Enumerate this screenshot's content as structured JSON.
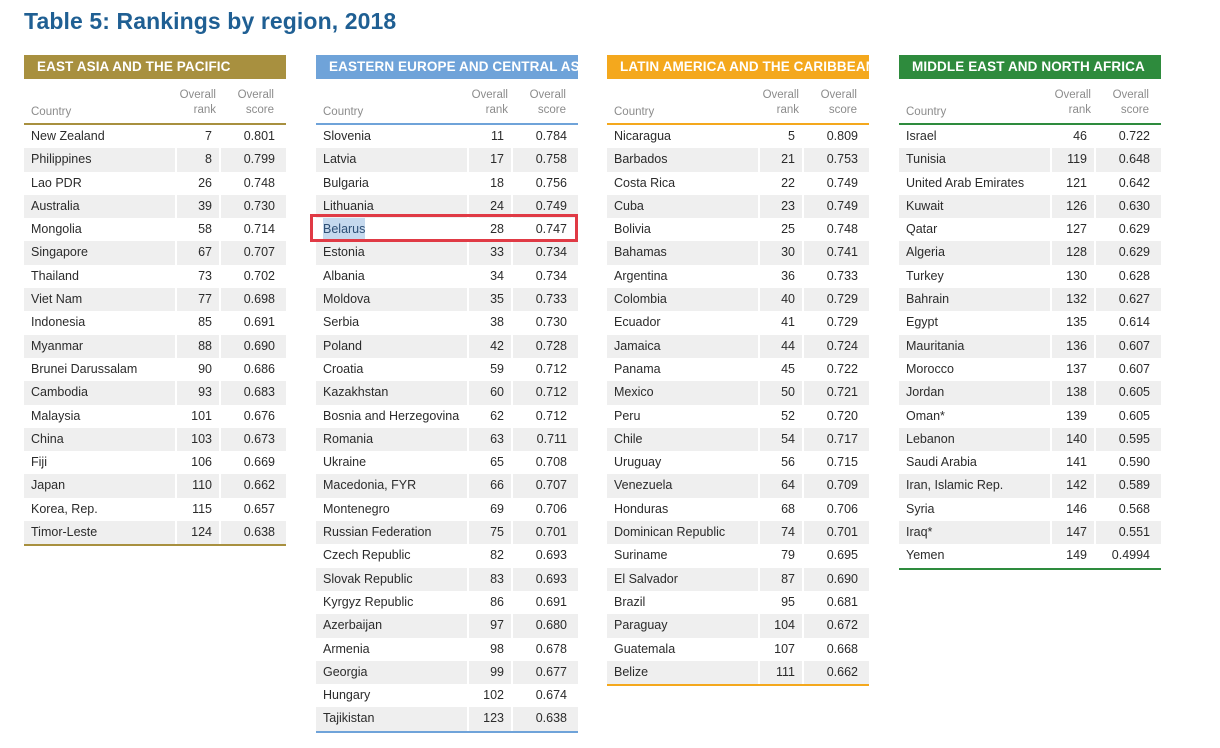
{
  "title": "Table 5: Rankings by region, 2018",
  "columns": {
    "country": "Country",
    "rank": "Overall\nrank",
    "score": "Overall\nscore"
  },
  "colors": {
    "title": "#1f5f93",
    "east_asia": "#a8903f",
    "eastern_europe": "#6fa3d9",
    "latin_america": "#f4a81d",
    "middle_east": "#2e8b3d",
    "highlight": "#e03a45"
  },
  "regions": [
    {
      "name": "EAST ASIA AND THE PACIFIC",
      "color": "#a8903f",
      "rows": [
        [
          "New Zealand",
          "7",
          "0.801"
        ],
        [
          "Philippines",
          "8",
          "0.799"
        ],
        [
          "Lao PDR",
          "26",
          "0.748"
        ],
        [
          "Australia",
          "39",
          "0.730"
        ],
        [
          "Mongolia",
          "58",
          "0.714"
        ],
        [
          "Singapore",
          "67",
          "0.707"
        ],
        [
          "Thailand",
          "73",
          "0.702"
        ],
        [
          "Viet Nam",
          "77",
          "0.698"
        ],
        [
          "Indonesia",
          "85",
          "0.691"
        ],
        [
          "Myanmar",
          "88",
          "0.690"
        ],
        [
          "Brunei Darussalam",
          "90",
          "0.686"
        ],
        [
          "Cambodia",
          "93",
          "0.683"
        ],
        [
          "Malaysia",
          "101",
          "0.676"
        ],
        [
          "China",
          "103",
          "0.673"
        ],
        [
          "Fiji",
          "106",
          "0.669"
        ],
        [
          "Japan",
          "110",
          "0.662"
        ],
        [
          "Korea, Rep.",
          "115",
          "0.657"
        ],
        [
          "Timor-Leste",
          "124",
          "0.638"
        ]
      ]
    },
    {
      "name": "EASTERN EUROPE AND CENTRAL ASIA",
      "color": "#6fa3d9",
      "rows": [
        [
          "Slovenia",
          "11",
          "0.784"
        ],
        [
          "Latvia",
          "17",
          "0.758"
        ],
        [
          "Bulgaria",
          "18",
          "0.756"
        ],
        [
          "Lithuania",
          "24",
          "0.749"
        ],
        [
          "Belarus",
          "28",
          "0.747"
        ],
        [
          "Estonia",
          "33",
          "0.734"
        ],
        [
          "Albania",
          "34",
          "0.734"
        ],
        [
          "Moldova",
          "35",
          "0.733"
        ],
        [
          "Serbia",
          "38",
          "0.730"
        ],
        [
          "Poland",
          "42",
          "0.728"
        ],
        [
          "Croatia",
          "59",
          "0.712"
        ],
        [
          "Kazakhstan",
          "60",
          "0.712"
        ],
        [
          "Bosnia and Herzegovina",
          "62",
          "0.712"
        ],
        [
          "Romania",
          "63",
          "0.711"
        ],
        [
          "Ukraine",
          "65",
          "0.708"
        ],
        [
          "Macedonia, FYR",
          "66",
          "0.707"
        ],
        [
          "Montenegro",
          "69",
          "0.706"
        ],
        [
          "Russian Federation",
          "75",
          "0.701"
        ],
        [
          "Czech Republic",
          "82",
          "0.693"
        ],
        [
          "Slovak Republic",
          "83",
          "0.693"
        ],
        [
          "Kyrgyz Republic",
          "86",
          "0.691"
        ],
        [
          "Azerbaijan",
          "97",
          "0.680"
        ],
        [
          "Armenia",
          "98",
          "0.678"
        ],
        [
          "Georgia",
          "99",
          "0.677"
        ],
        [
          "Hungary",
          "102",
          "0.674"
        ],
        [
          "Tajikistan",
          "123",
          "0.638"
        ]
      ]
    },
    {
      "name": "LATIN AMERICA AND THE CARIBBEAN",
      "color": "#f4a81d",
      "rows": [
        [
          "Nicaragua",
          "5",
          "0.809"
        ],
        [
          "Barbados",
          "21",
          "0.753"
        ],
        [
          "Costa Rica",
          "22",
          "0.749"
        ],
        [
          "Cuba",
          "23",
          "0.749"
        ],
        [
          "Bolivia",
          "25",
          "0.748"
        ],
        [
          "Bahamas",
          "30",
          "0.741"
        ],
        [
          "Argentina",
          "36",
          "0.733"
        ],
        [
          "Colombia",
          "40",
          "0.729"
        ],
        [
          "Ecuador",
          "41",
          "0.729"
        ],
        [
          "Jamaica",
          "44",
          "0.724"
        ],
        [
          "Panama",
          "45",
          "0.722"
        ],
        [
          "Mexico",
          "50",
          "0.721"
        ],
        [
          "Peru",
          "52",
          "0.720"
        ],
        [
          "Chile",
          "54",
          "0.717"
        ],
        [
          "Uruguay",
          "56",
          "0.715"
        ],
        [
          "Venezuela",
          "64",
          "0.709"
        ],
        [
          "Honduras",
          "68",
          "0.706"
        ],
        [
          "Dominican Republic",
          "74",
          "0.701"
        ],
        [
          "Suriname",
          "79",
          "0.695"
        ],
        [
          "El Salvador",
          "87",
          "0.690"
        ],
        [
          "Brazil",
          "95",
          "0.681"
        ],
        [
          "Paraguay",
          "104",
          "0.672"
        ],
        [
          "Guatemala",
          "107",
          "0.668"
        ],
        [
          "Belize",
          "111",
          "0.662"
        ]
      ]
    },
    {
      "name": "MIDDLE EAST AND NORTH AFRICA",
      "color": "#2e8b3d",
      "rows": [
        [
          "Israel",
          "46",
          "0.722"
        ],
        [
          "Tunisia",
          "119",
          "0.648"
        ],
        [
          "United Arab Emirates",
          "121",
          "0.642"
        ],
        [
          "Kuwait",
          "126",
          "0.630"
        ],
        [
          "Qatar",
          "127",
          "0.629"
        ],
        [
          "Algeria",
          "128",
          "0.629"
        ],
        [
          "Turkey",
          "130",
          "0.628"
        ],
        [
          "Bahrain",
          "132",
          "0.627"
        ],
        [
          "Egypt",
          "135",
          "0.614"
        ],
        [
          "Mauritania",
          "136",
          "0.607"
        ],
        [
          "Morocco",
          "137",
          "0.607"
        ],
        [
          "Jordan",
          "138",
          "0.605"
        ],
        [
          "Oman*",
          "139",
          "0.605"
        ],
        [
          "Lebanon",
          "140",
          "0.595"
        ],
        [
          "Saudi Arabia",
          "141",
          "0.590"
        ],
        [
          "Iran, Islamic Rep.",
          "142",
          "0.589"
        ],
        [
          "Syria",
          "146",
          "0.568"
        ],
        [
          "Iraq*",
          "147",
          "0.551"
        ],
        [
          "Yemen",
          "149",
          "0.4994"
        ]
      ]
    }
  ]
}
